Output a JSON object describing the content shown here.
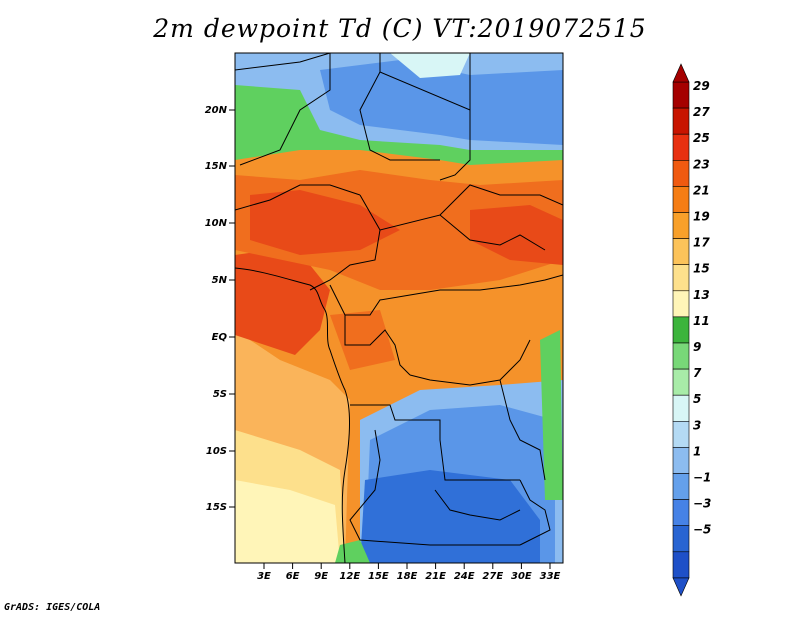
{
  "title": "2m dewpoint Td (C) VT:2019072515",
  "credit": "GrADS: IGES/COLA",
  "lat_labels": [
    "20N",
    "15N",
    "10N",
    "5N",
    "EQ",
    "5S",
    "10S",
    "15S"
  ],
  "lon_labels": [
    "3E",
    "6E",
    "9E",
    "12E",
    "15E",
    "18E",
    "21E",
    "24E",
    "27E",
    "30E",
    "33E"
  ],
  "colorbar": {
    "labels": [
      "29",
      "27",
      "25",
      "23",
      "21",
      "19",
      "17",
      "15",
      "13",
      "11",
      "9",
      "7",
      "5",
      "3",
      "1",
      "−1",
      "−3",
      "−5"
    ],
    "colors": [
      "#a50000",
      "#c81400",
      "#e83010",
      "#f05a10",
      "#f57d14",
      "#f8a02a",
      "#fcc35a",
      "#fde08c",
      "#fff5b8",
      "#3cb43c",
      "#78d878",
      "#a8eca8",
      "#d8f6f6",
      "#b4daf4",
      "#8cbcf0",
      "#64a0eb",
      "#4682e6",
      "#2864d2",
      "#1e50c8"
    ]
  },
  "map": {
    "lon_range": [
      0,
      35
    ],
    "lat_range": [
      -20,
      24.5
    ],
    "field_colors": {
      "very_humid": "#e84a18",
      "humid": "#f06e1e",
      "warm": "#f5922a",
      "mild": "#fab45a",
      "moderate": "#fde08c",
      "green": "#5fd05f",
      "light_blue": "#8cbcf0",
      "blue": "#5a96e8",
      "dark_blue": "#3070d8"
    }
  }
}
